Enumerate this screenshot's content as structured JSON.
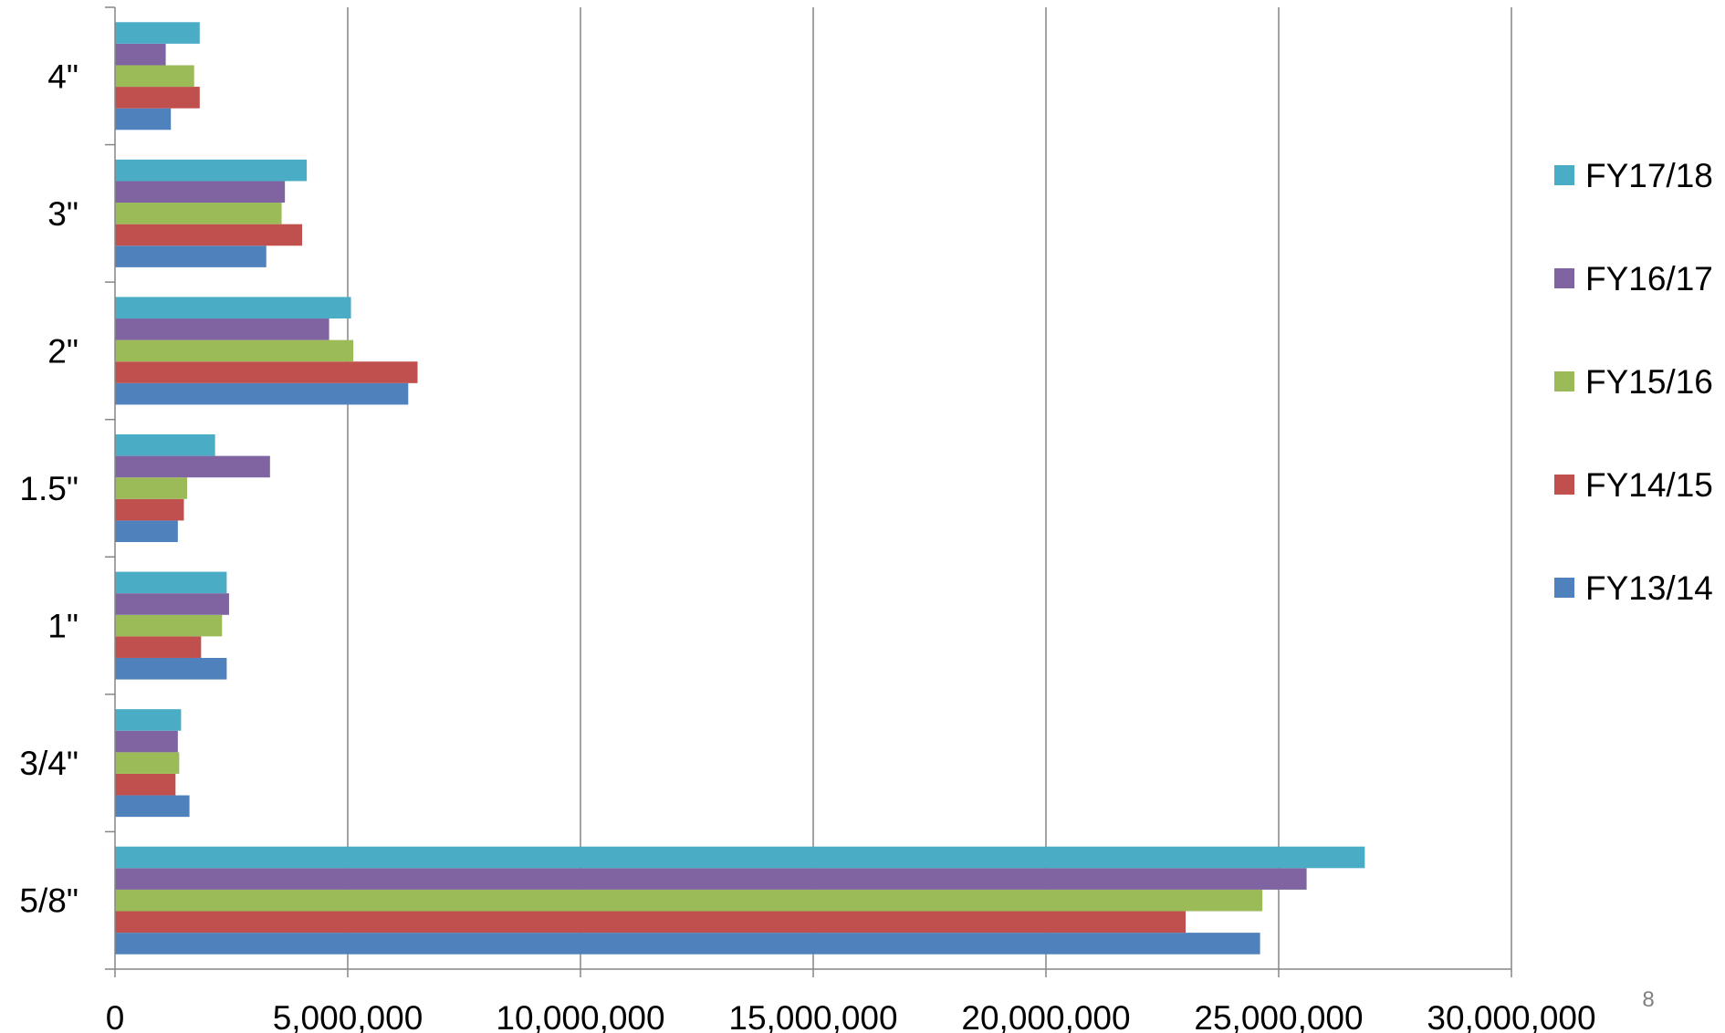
{
  "chart_data": {
    "type": "bar",
    "orientation": "horizontal",
    "categories": [
      "5/8\"",
      "3/4\"",
      "1\"",
      "1.5\"",
      "2\"",
      "3\"",
      "4\""
    ],
    "series": [
      {
        "name": "FY13/14",
        "color": "#4F81BD",
        "values": [
          24600000,
          1600000,
          2400000,
          1350000,
          6300000,
          3250000,
          1200000
        ]
      },
      {
        "name": "FY14/15",
        "color": "#C0504D",
        "values": [
          23000000,
          1300000,
          1850000,
          1480000,
          6500000,
          4020000,
          1820000
        ]
      },
      {
        "name": "FY15/16",
        "color": "#9BBB59",
        "values": [
          24650000,
          1380000,
          2300000,
          1550000,
          5120000,
          3580000,
          1700000
        ]
      },
      {
        "name": "FY16/17",
        "color": "#8064A2",
        "values": [
          25600000,
          1350000,
          2450000,
          3330000,
          4600000,
          3650000,
          1090000
        ]
      },
      {
        "name": "FY17/18",
        "color": "#4BACC6",
        "values": [
          26850000,
          1420000,
          2400000,
          2150000,
          5070000,
          4120000,
          1820000
        ]
      }
    ],
    "xlim": [
      0,
      30000000
    ],
    "x_ticks": [
      0,
      5000000,
      10000000,
      15000000,
      20000000,
      25000000,
      30000000
    ],
    "x_tick_labels": [
      "0",
      "5,000,000",
      "10,000,000",
      "15,000,000",
      "20,000,000",
      "25,000,000",
      "30,000,000"
    ],
    "grid": "vertical",
    "legend": "right",
    "title": "",
    "xlabel": "",
    "ylabel": ""
  },
  "page_number": "8"
}
